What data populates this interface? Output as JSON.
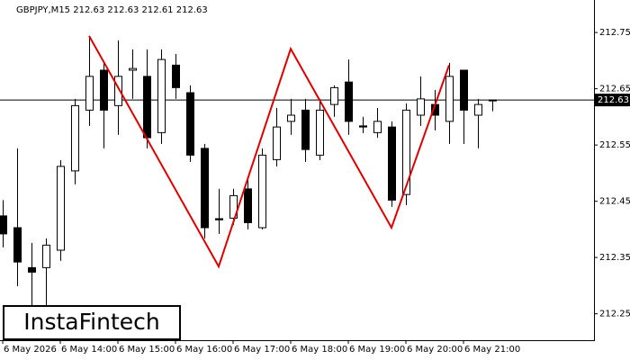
{
  "chart_data": {
    "type": "candlestick",
    "title": "GBPJPY,M15  212.63 212.63 212.61 212.63",
    "categories": [
      "6 May 2026",
      null,
      null,
      null,
      "6 May 14:00",
      null,
      null,
      null,
      "6 May 15:00",
      null,
      null,
      null,
      "6 May 16:00",
      null,
      null,
      null,
      "6 May 17:00",
      null,
      null,
      null,
      "6 May 18:00",
      null,
      null,
      null,
      "6 May 19:00",
      null,
      null,
      null,
      "6 May 20:00",
      null,
      null,
      null,
      "6 May 21:00",
      null,
      null
    ],
    "open": [
      212.424,
      212.403,
      212.332,
      212.332,
      212.363,
      212.504,
      212.612,
      212.683,
      212.62,
      212.683,
      212.672,
      212.572,
      212.692,
      212.643,
      212.544,
      212.419,
      212.42,
      212.472,
      212.403,
      212.524,
      212.592,
      212.612,
      212.532,
      212.622,
      212.662,
      212.584,
      212.572,
      212.582,
      212.462,
      212.603,
      212.622,
      212.592,
      212.683,
      212.603,
      212.63
    ],
    "high": [
      212.452,
      212.544,
      212.376,
      212.384,
      212.523,
      212.632,
      212.744,
      212.699,
      212.736,
      212.72,
      212.72,
      212.72,
      212.712,
      212.656,
      212.552,
      212.472,
      212.472,
      212.488,
      212.544,
      212.616,
      212.632,
      212.632,
      212.632,
      212.656,
      212.702,
      212.6,
      212.616,
      212.592,
      212.624,
      212.672,
      212.648,
      212.696,
      212.683,
      212.632,
      212.63
    ],
    "low": [
      212.368,
      212.299,
      212.264,
      212.264,
      212.344,
      212.48,
      212.584,
      212.544,
      212.568,
      212.632,
      212.544,
      212.552,
      212.632,
      212.52,
      212.384,
      212.392,
      212.408,
      212.4,
      212.4,
      212.512,
      212.568,
      212.52,
      212.523,
      212.6,
      212.568,
      212.571,
      212.563,
      212.44,
      212.443,
      212.584,
      212.576,
      212.552,
      212.552,
      212.544,
      212.61
    ],
    "close": [
      212.392,
      212.342,
      212.324,
      212.372,
      212.512,
      212.62,
      212.672,
      212.612,
      212.672,
      212.686,
      212.563,
      212.702,
      212.652,
      212.532,
      212.403,
      212.417,
      212.46,
      212.412,
      212.532,
      212.582,
      212.603,
      212.542,
      212.612,
      212.652,
      212.592,
      212.582,
      212.592,
      212.452,
      212.612,
      212.632,
      212.603,
      212.672,
      212.612,
      212.622,
      212.63
    ],
    "up_color": "#ffffff",
    "down_color": "#000000",
    "pattern": {
      "color": "#e00000",
      "x": [
        6,
        15,
        20,
        27,
        31
      ],
      "values": [
        212.744,
        212.334,
        212.721,
        212.403,
        212.692
      ]
    },
    "current_price": 212.63,
    "ylim": [
      212.203,
      212.803
    ],
    "yticks": [
      212.25,
      212.35,
      212.45,
      212.55,
      212.65,
      212.75
    ],
    "logo": "InstaFintech"
  }
}
